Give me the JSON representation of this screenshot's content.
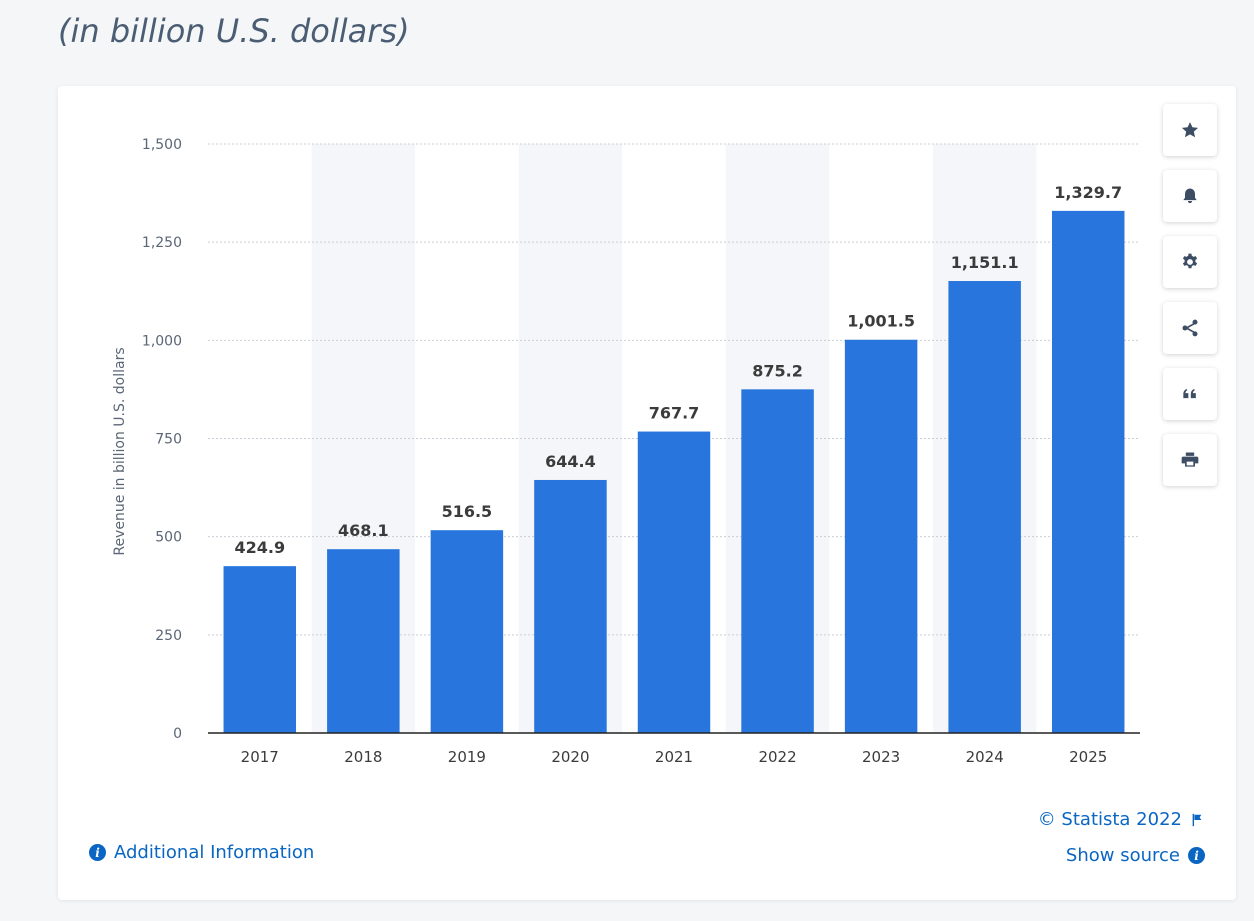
{
  "header": {
    "subtitle": "(in billion U.S. dollars)"
  },
  "toolbar": {
    "buttons": [
      {
        "name": "favorite-button",
        "icon": "star-icon"
      },
      {
        "name": "notification-button",
        "icon": "bell-icon"
      },
      {
        "name": "settings-button",
        "icon": "gear-icon"
      },
      {
        "name": "share-button",
        "icon": "share-icon"
      },
      {
        "name": "cite-button",
        "icon": "quote-icon"
      },
      {
        "name": "print-button",
        "icon": "printer-icon"
      }
    ]
  },
  "footer": {
    "additional_info": "Additional Information",
    "copyright": "© Statista 2022",
    "show_source": "Show source"
  },
  "colors": {
    "bar": "#2876dd",
    "band": "#f4f6f9",
    "accent": "#0a66c2"
  },
  "chart_data": {
    "type": "bar",
    "categories": [
      "2017",
      "2018",
      "2019",
      "2020",
      "2021",
      "2022",
      "2023",
      "2024",
      "2025"
    ],
    "values": [
      424.9,
      468.1,
      516.5,
      644.4,
      767.7,
      875.2,
      1001.5,
      1151.1,
      1329.7
    ],
    "value_labels": [
      "424.9",
      "468.1",
      "516.5",
      "644.4",
      "767.7",
      "875.2",
      "1,001.5",
      "1,151.1",
      "1,329.7"
    ],
    "ylabel": "Revenue in billion U.S. dollars",
    "ylim": [
      0,
      1500
    ],
    "yticks": [
      0,
      250,
      500,
      750,
      1000,
      1250,
      1500
    ],
    "ytick_labels": [
      "0",
      "250",
      "500",
      "750",
      "1,000",
      "1,250",
      "1,500"
    ],
    "grid": true
  }
}
